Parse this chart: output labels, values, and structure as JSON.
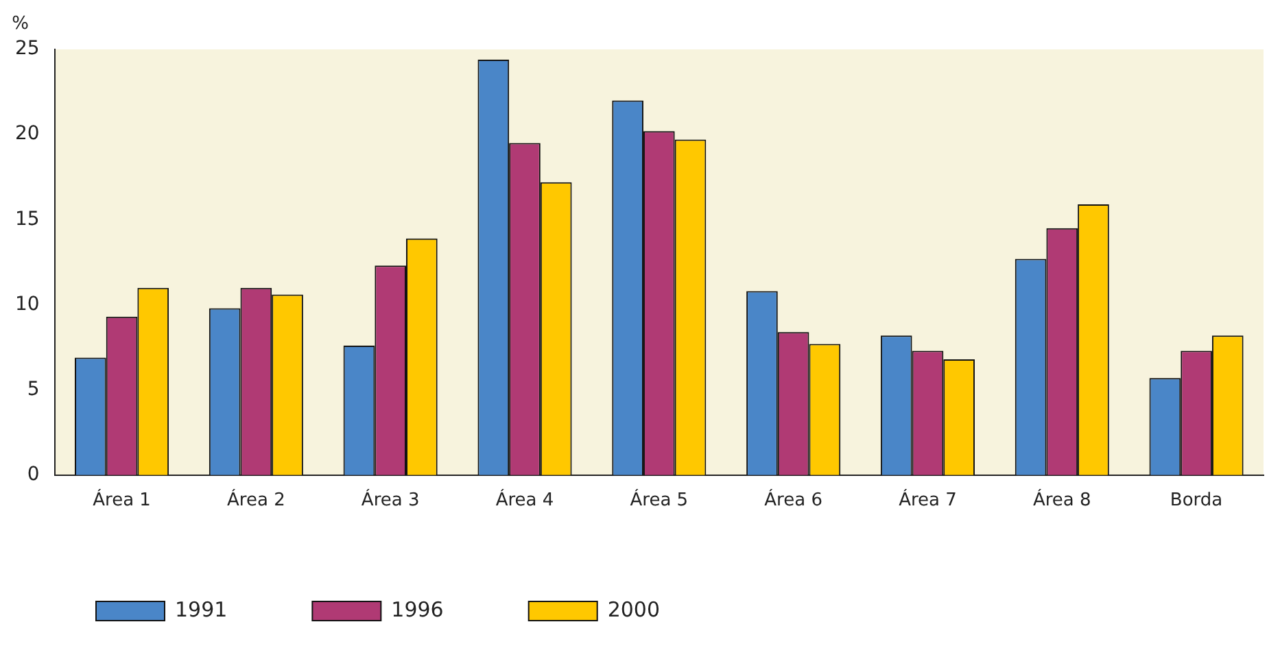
{
  "chart_data": {
    "type": "bar",
    "ylabel": "%",
    "categories": [
      "Área 1",
      "Área 2",
      "Área 3",
      "Área 4",
      "Área 5",
      "Área 6",
      "Área 7",
      "Área 8",
      "Borda"
    ],
    "series": [
      {
        "name": "1991",
        "color": "#4a86c8",
        "values": [
          6.9,
          9.8,
          7.6,
          24.4,
          22.0,
          10.8,
          8.2,
          12.7,
          5.7
        ]
      },
      {
        "name": "1996",
        "color": "#b03a74",
        "values": [
          9.3,
          11.0,
          12.3,
          19.5,
          20.2,
          8.4,
          7.3,
          14.5,
          7.3
        ]
      },
      {
        "name": "2000",
        "color": "#ffc800",
        "values": [
          11.0,
          10.6,
          13.9,
          17.2,
          19.7,
          7.7,
          6.8,
          15.9,
          8.2
        ]
      }
    ],
    "ylim": [
      0,
      25
    ],
    "yticks": [
      0,
      5,
      10,
      15,
      20,
      25
    ],
    "grid": false,
    "legend": "bottom left"
  }
}
